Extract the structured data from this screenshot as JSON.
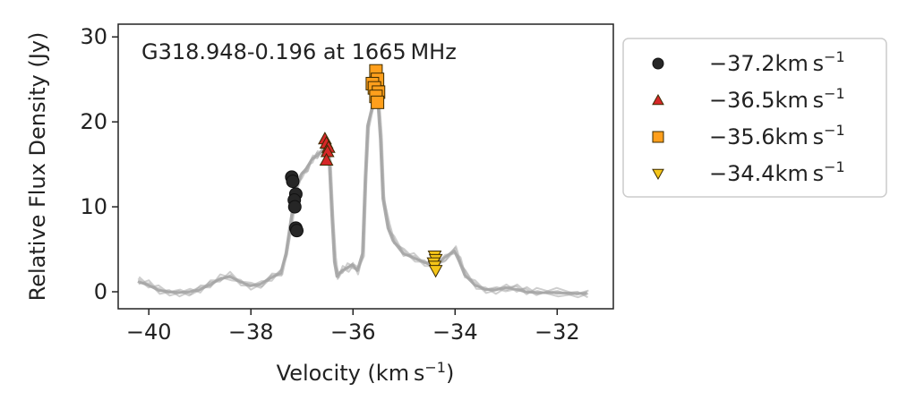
{
  "chart_data": {
    "type": "line",
    "annotation": "G318.948-0.196 at 1665 MHz",
    "xlabel": "Velocity (km s",
    "xlabel_sup": "−1",
    "xlabel_end": ")",
    "ylabel": "Relative Flux Density (Jy)",
    "xlim": [
      -40.6,
      -30.9
    ],
    "ylim": [
      -2,
      31.5
    ],
    "xticks": [
      -40,
      -38,
      -36,
      -34,
      -32
    ],
    "xtick_labels": [
      "−40",
      "−38",
      "−36",
      "−34",
      "−32"
    ],
    "yticks": [
      0,
      10,
      20,
      30
    ],
    "ytick_labels": [
      "0",
      "10",
      "20",
      "30"
    ],
    "grid": false,
    "legend_position": "outside-right",
    "spectrum_color": "#a6a6a6",
    "spectra_count": 5,
    "spectrum": [
      [
        -40.2,
        1.2
      ],
      [
        -40.0,
        0.8
      ],
      [
        -39.8,
        0.2
      ],
      [
        -39.6,
        0.0
      ],
      [
        -39.4,
        -0.1
      ],
      [
        -39.2,
        0.0
      ],
      [
        -39.0,
        0.2
      ],
      [
        -38.8,
        0.8
      ],
      [
        -38.6,
        1.5
      ],
      [
        -38.4,
        1.8
      ],
      [
        -38.2,
        1.2
      ],
      [
        -38.0,
        0.7
      ],
      [
        -37.8,
        0.9
      ],
      [
        -37.6,
        1.6
      ],
      [
        -37.4,
        2.2
      ],
      [
        -37.3,
        4.5
      ],
      [
        -37.2,
        8.5
      ],
      [
        -37.1,
        12.5
      ],
      [
        -37.0,
        13.8
      ],
      [
        -36.9,
        14.5
      ],
      [
        -36.8,
        15.5
      ],
      [
        -36.7,
        16.0
      ],
      [
        -36.6,
        16.5
      ],
      [
        -36.55,
        17.0
      ],
      [
        -36.5,
        17.3
      ],
      [
        -36.45,
        15.0
      ],
      [
        -36.4,
        9.0
      ],
      [
        -36.35,
        3.5
      ],
      [
        -36.3,
        1.8
      ],
      [
        -36.2,
        2.5
      ],
      [
        -36.1,
        2.8
      ],
      [
        -36.0,
        3.2
      ],
      [
        -35.9,
        2.5
      ],
      [
        -35.8,
        4.5
      ],
      [
        -35.75,
        13.0
      ],
      [
        -35.7,
        19.5
      ],
      [
        -35.6,
        22.0
      ],
      [
        -35.55,
        22.8
      ],
      [
        -35.5,
        22.5
      ],
      [
        -35.45,
        18.0
      ],
      [
        -35.4,
        11.0
      ],
      [
        -35.3,
        7.5
      ],
      [
        -35.2,
        6.0
      ],
      [
        -35.0,
        4.5
      ],
      [
        -34.8,
        4.0
      ],
      [
        -34.6,
        3.5
      ],
      [
        -34.4,
        3.0
      ],
      [
        -34.2,
        4.0
      ],
      [
        -34.0,
        4.8
      ],
      [
        -33.9,
        3.5
      ],
      [
        -33.8,
        2.0
      ],
      [
        -33.6,
        0.8
      ],
      [
        -33.4,
        0.3
      ],
      [
        -33.2,
        0.2
      ],
      [
        -33.0,
        0.5
      ],
      [
        -32.8,
        0.3
      ],
      [
        -32.6,
        0.0
      ],
      [
        -32.4,
        -0.1
      ],
      [
        -32.0,
        -0.1
      ],
      [
        -31.6,
        -0.2
      ],
      [
        -31.4,
        -0.2
      ]
    ],
    "series": [
      {
        "name": "−37.2km s",
        "name_sup": "−1",
        "marker": "circle",
        "color": "#262626",
        "points": [
          [
            -37.2,
            13.5
          ],
          [
            -37.18,
            13.0
          ],
          [
            -37.12,
            11.5
          ],
          [
            -37.15,
            10.8
          ],
          [
            -37.14,
            10.0
          ],
          [
            -37.12,
            7.5
          ],
          [
            -37.1,
            7.2
          ]
        ]
      },
      {
        "name": "−36.5km s",
        "name_sup": "−1",
        "marker": "triangle-up",
        "color": "#d62728",
        "points": [
          [
            -36.55,
            18.0
          ],
          [
            -36.52,
            17.5
          ],
          [
            -36.48,
            17.0
          ],
          [
            -36.5,
            16.5
          ],
          [
            -36.52,
            15.5
          ]
        ]
      },
      {
        "name": "−35.6km s",
        "name_sup": "−1",
        "marker": "square",
        "color": "#ff9f1c",
        "points": [
          [
            -35.55,
            26.0
          ],
          [
            -35.52,
            25.0
          ],
          [
            -35.62,
            24.5
          ],
          [
            -35.58,
            24.0
          ],
          [
            -35.5,
            23.5
          ],
          [
            -35.55,
            23.0
          ],
          [
            -35.52,
            22.3
          ]
        ]
      },
      {
        "name": "−34.4km s",
        "name_sup": "−1",
        "marker": "triangle-down",
        "color": "#f5c518",
        "points": [
          [
            -34.4,
            4.2
          ],
          [
            -34.38,
            3.8
          ],
          [
            -34.42,
            3.4
          ],
          [
            -34.4,
            3.0
          ],
          [
            -34.38,
            2.5
          ]
        ]
      }
    ]
  }
}
